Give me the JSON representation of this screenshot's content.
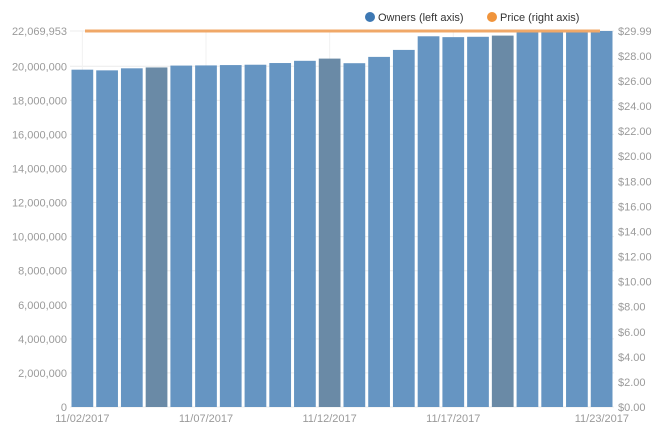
{
  "chart_data": {
    "type": "bar",
    "categories": [
      "11/02/2017",
      "11/03/2017",
      "11/04/2017",
      "11/05/2017",
      "11/06/2017",
      "11/07/2017",
      "11/08/2017",
      "11/09/2017",
      "11/10/2017",
      "11/11/2017",
      "11/12/2017",
      "11/13/2017",
      "11/14/2017",
      "11/15/2017",
      "11/16/2017",
      "11/17/2017",
      "11/18/2017",
      "11/19/2017",
      "11/20/2017",
      "11/21/2017",
      "11/22/2017",
      "11/23/2017"
    ],
    "x_tick_labels": [
      "11/02/2017",
      "11/07/2017",
      "11/12/2017",
      "11/17/2017",
      "11/23/2017"
    ],
    "series": [
      {
        "name": "Owners (left axis)",
        "axis": "left",
        "render": "bar",
        "color": "#6695c2",
        "highlight_color": "#6a8aa6",
        "values": [
          19800000,
          19760000,
          19880000,
          19930000,
          20040000,
          20050000,
          20070000,
          20090000,
          20190000,
          20320000,
          20450000,
          20180000,
          20550000,
          20960000,
          21760000,
          21710000,
          21730000,
          21800000,
          22000000,
          22020000,
          22030000,
          22069953
        ]
      },
      {
        "name": "Price (right axis)",
        "axis": "right",
        "render": "line",
        "color": "#f0a868",
        "values": [
          29.99,
          29.99,
          29.99,
          29.99,
          29.99,
          29.99,
          29.99,
          29.99,
          29.99,
          29.99,
          29.99,
          29.99,
          29.99,
          29.99,
          29.99,
          29.99,
          29.99,
          29.99,
          29.99,
          29.99,
          29.99,
          29.99
        ]
      }
    ],
    "highlighted_categories": [
      "11/05/2017",
      "11/12/2017",
      "11/19/2017"
    ],
    "y_left": {
      "ylim": [
        0,
        22069953
      ],
      "tick_values": [
        0,
        2000000,
        4000000,
        6000000,
        8000000,
        10000000,
        12000000,
        14000000,
        16000000,
        18000000,
        20000000,
        22069953
      ],
      "tick_labels": [
        "0",
        "2,000,000",
        "4,000,000",
        "6,000,000",
        "8,000,000",
        "10,000,000",
        "12,000,000",
        "14,000,000",
        "16,000,000",
        "18,000,000",
        "20,000,000",
        "22,069,953"
      ]
    },
    "y_right": {
      "ylim": [
        0,
        29.99
      ],
      "tick_values": [
        0,
        2,
        4,
        6,
        8,
        10,
        12,
        14,
        16,
        18,
        20,
        22,
        24,
        26,
        28,
        29.99
      ],
      "tick_labels": [
        "$0.00",
        "$2.00",
        "$4.00",
        "$6.00",
        "$8.00",
        "$10.00",
        "$12.00",
        "$14.00",
        "$16.00",
        "$18.00",
        "$20.00",
        "$22.00",
        "$24.00",
        "$26.00",
        "$28.00",
        "$29.99"
      ]
    },
    "legend": {
      "position": "top-right",
      "entries": [
        {
          "label": "Owners (left axis)",
          "color": "#3d78b3"
        },
        {
          "label": "Price (right axis)",
          "color": "#f0943c"
        }
      ]
    },
    "grid": true
  }
}
